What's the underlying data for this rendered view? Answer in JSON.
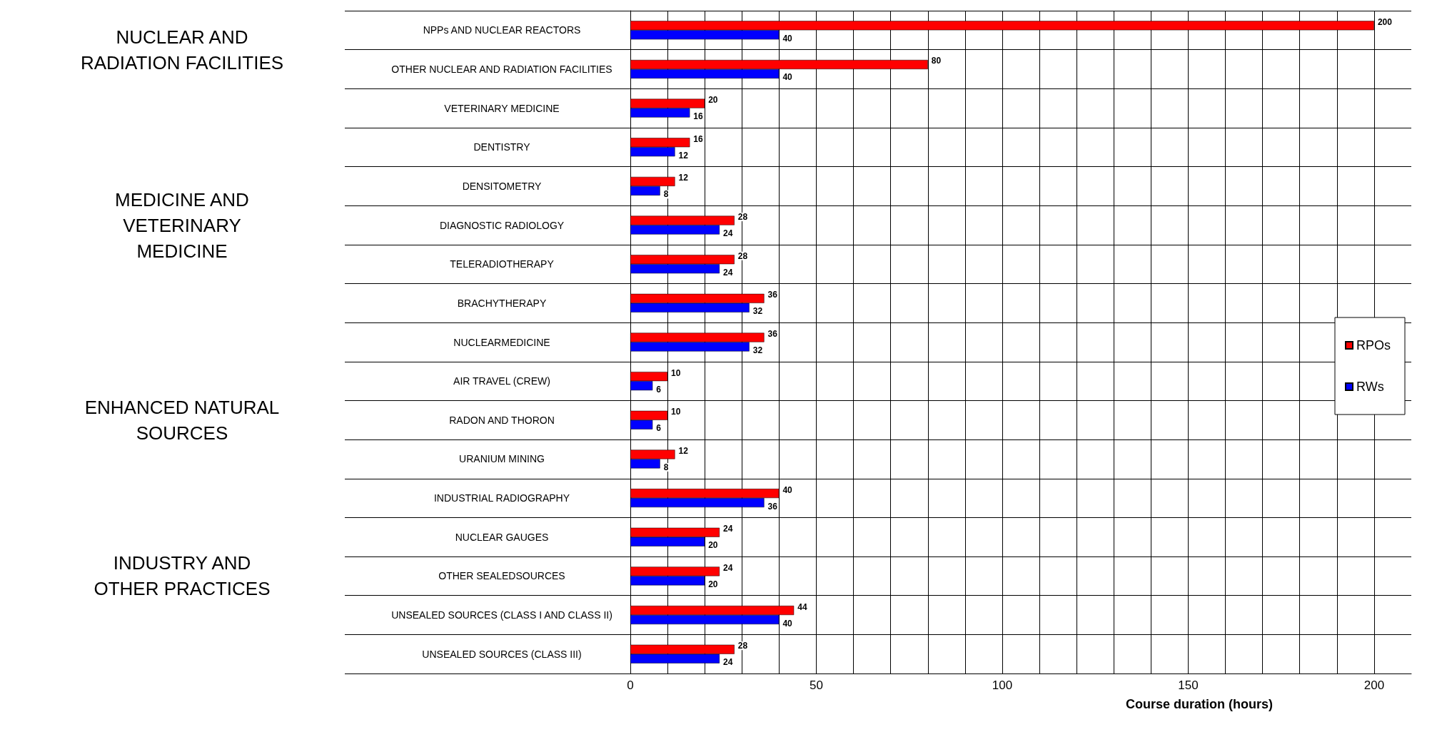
{
  "chart_data": {
    "type": "bar",
    "orientation": "horizontal",
    "categories": [
      "NPPs AND NUCLEAR REACTORS",
      "OTHER NUCLEAR AND RADIATION FACILITIES",
      "VETERINARY MEDICINE",
      "DENTISTRY",
      "DENSITOMETRY",
      "DIAGNOSTIC RADIOLOGY",
      "TELERADIOTHERAPY",
      "BRACHYTHERAPY",
      "NUCLEARMEDICINE",
      "AIR TRAVEL (CREW)",
      "RADON AND THORON",
      "URANIUM MINING",
      "INDUSTRIAL RADIOGRAPHY",
      "NUCLEAR GAUGES",
      "OTHER SEALEDSOURCES",
      "UNSEALED SOURCES (CLASS I AND CLASS II)",
      "UNSEALED SOURCES (CLASS III)"
    ],
    "series": [
      {
        "name": "RPOs",
        "color": "#ff0000",
        "values": [
          200,
          80,
          20,
          16,
          12,
          28,
          28,
          36,
          36,
          10,
          10,
          12,
          40,
          24,
          24,
          44,
          28
        ]
      },
      {
        "name": "RWs",
        "color": "#0000ff",
        "values": [
          40,
          40,
          16,
          12,
          8,
          24,
          24,
          32,
          32,
          6,
          6,
          8,
          36,
          20,
          20,
          40,
          24
        ]
      }
    ],
    "xlabel": "Course duration (hours)",
    "xlim": [
      0,
      210
    ],
    "xticks": [
      0,
      {
        "value": 10,
        "label": null
      },
      {
        "value": 20,
        "label": null
      },
      {
        "value": 30,
        "label": null
      },
      {
        "value": 40,
        "label": null
      },
      50,
      {
        "value": 60,
        "label": null
      },
      {
        "value": 70,
        "label": null
      },
      {
        "value": 80,
        "label": null
      },
      {
        "value": 90,
        "label": null
      },
      100,
      {
        "value": 110,
        "label": null
      },
      {
        "value": 120,
        "label": null
      },
      {
        "value": 130,
        "label": null
      },
      {
        "value": 140,
        "label": null
      },
      150,
      {
        "value": 160,
        "label": null
      },
      {
        "value": 170,
        "label": null
      },
      {
        "value": 180,
        "label": null
      },
      {
        "value": 190,
        "label": null
      },
      200
    ],
    "annotations": [
      "NUCLEAR AND RADIATION FACILITIES",
      "MEDICINE AND VETERINARY MEDICINE",
      "ENHANCED NATURAL SOURCES",
      "INDUSTRY AND OTHER PRACTICES"
    ],
    "data_labels": true,
    "grid": true,
    "legend": "right"
  }
}
